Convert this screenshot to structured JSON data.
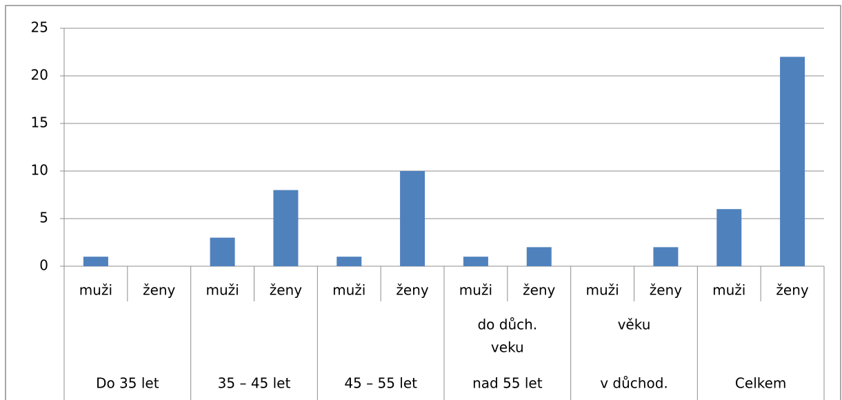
{
  "chart_data": {
    "type": "bar",
    "categories": [
      "muži",
      "ženy",
      "muži",
      "ženy",
      "muži",
      "ženy",
      "muži",
      "ženy",
      "muži",
      "ženy",
      "muži",
      "ženy"
    ],
    "groups": [
      [
        "Do 35 let"
      ],
      [
        "35 – 45 let"
      ],
      [
        "45 – 55 let"
      ],
      [
        "do důch.",
        "veku",
        "nad 55 let"
      ],
      [
        "věku",
        "v důchod."
      ],
      [
        "Celkem"
      ]
    ],
    "values": [
      1,
      null,
      3,
      8,
      1,
      10,
      1,
      2,
      null,
      2,
      6,
      22
    ],
    "color": "#4f81bd",
    "ylim": [
      0,
      25
    ],
    "yticks": [
      0,
      5,
      10,
      15,
      20,
      25
    ],
    "grid": true
  }
}
